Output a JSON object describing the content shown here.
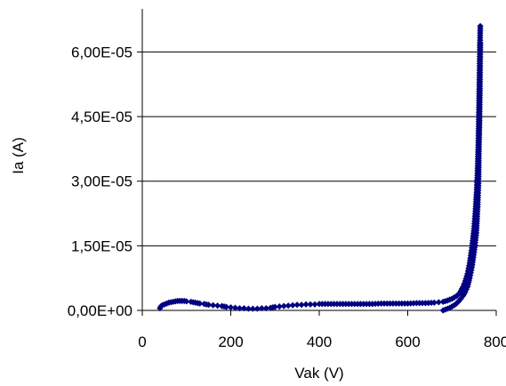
{
  "chart_data": {
    "type": "scatter",
    "title": "",
    "xlabel": "Vak (V)",
    "ylabel": "Ia (A)",
    "xlim": [
      0,
      800
    ],
    "ylim": [
      0,
      7e-05
    ],
    "x_ticks": [
      0,
      200,
      400,
      600,
      800
    ],
    "x_tick_labels": [
      "0",
      "200",
      "400",
      "600",
      "800"
    ],
    "y_ticks": [
      0,
      1.5e-05,
      3e-05,
      4.5e-05,
      6e-05
    ],
    "y_tick_labels": [
      "0,00E+00",
      "1,50E-05",
      "3,00E-05",
      "4,50E-05",
      "6,00E-05"
    ],
    "grid": "horizontal",
    "legend": "none",
    "marker_color": "#000080",
    "marker": "diamond",
    "series": [
      {
        "points": [
          [
            40,
            5e-07
          ],
          [
            42,
            9e-07
          ],
          [
            45,
            1.2e-06
          ],
          [
            50,
            1.4e-06
          ],
          [
            55,
            1.6e-06
          ],
          [
            60,
            1.8e-06
          ],
          [
            65,
            1.9e-06
          ],
          [
            70,
            2e-06
          ],
          [
            75,
            2.1e-06
          ],
          [
            80,
            2.2e-06
          ],
          [
            85,
            2.2e-06
          ],
          [
            90,
            2.2e-06
          ],
          [
            95,
            2.2e-06
          ],
          [
            100,
            2.1e-06
          ],
          [
            110,
            2e-06
          ],
          [
            120,
            1.8e-06
          ],
          [
            130,
            1.6e-06
          ],
          [
            140,
            1.5e-06
          ],
          [
            150,
            1.3e-06
          ],
          [
            160,
            1.2e-06
          ],
          [
            170,
            1.1e-06
          ],
          [
            180,
            1e-06
          ],
          [
            190,
            8e-07
          ],
          [
            200,
            7e-07
          ],
          [
            210,
            6e-07
          ],
          [
            220,
            5e-07
          ],
          [
            230,
            5e-07
          ],
          [
            240,
            4e-07
          ],
          [
            250,
            4e-07
          ],
          [
            260,
            4e-07
          ],
          [
            270,
            5e-07
          ],
          [
            280,
            5e-07
          ],
          [
            290,
            6e-07
          ],
          [
            300,
            8e-07
          ],
          [
            310,
            9e-07
          ],
          [
            320,
            1e-06
          ],
          [
            330,
            1.1e-06
          ],
          [
            340,
            1.2e-06
          ],
          [
            350,
            1.3e-06
          ],
          [
            360,
            1.3e-06
          ],
          [
            370,
            1.4e-06
          ],
          [
            380,
            1.4e-06
          ],
          [
            390,
            1.4e-06
          ],
          [
            400,
            1.5e-06
          ],
          [
            420,
            1.5e-06
          ],
          [
            440,
            1.5e-06
          ],
          [
            460,
            1.5e-06
          ],
          [
            480,
            1.5e-06
          ],
          [
            500,
            1.5e-06
          ],
          [
            520,
            1.5e-06
          ],
          [
            540,
            1.6e-06
          ],
          [
            560,
            1.6e-06
          ],
          [
            580,
            1.6e-06
          ],
          [
            600,
            1.6e-06
          ],
          [
            620,
            1.7e-06
          ],
          [
            640,
            1.7e-06
          ],
          [
            660,
            1.8e-06
          ],
          [
            670,
            1.9e-06
          ],
          [
            680,
            2e-06
          ],
          [
            690,
            2.3e-06
          ],
          [
            700,
            2.7e-06
          ],
          [
            710,
            3.3e-06
          ],
          [
            715,
            3.8e-06
          ],
          [
            720,
            4.5e-06
          ],
          [
            725,
            5.5e-06
          ],
          [
            730,
            6.8e-06
          ],
          [
            735,
            8.5e-06
          ],
          [
            740,
            1.1e-05
          ],
          [
            745,
            1.45e-05
          ],
          [
            750,
            1.9e-05
          ],
          [
            753,
            2.3e-05
          ],
          [
            756,
            2.8e-05
          ],
          [
            758,
            3.3e-05
          ],
          [
            760,
            4e-05
          ],
          [
            761,
            4.6e-05
          ],
          [
            762,
            5.3e-05
          ],
          [
            763,
            6e-05
          ],
          [
            764,
            6.6e-05
          ],
          [
            680,
            0
          ],
          [
            685,
            2e-07
          ],
          [
            690,
            4e-07
          ],
          [
            695,
            6e-07
          ],
          [
            700,
            9e-07
          ],
          [
            705,
            1.2e-06
          ],
          [
            710,
            1.6e-06
          ],
          [
            715,
            2.1e-06
          ],
          [
            720,
            2.7e-06
          ],
          [
            725,
            3.4e-06
          ],
          [
            730,
            4.3e-06
          ],
          [
            735,
            5.5e-06
          ],
          [
            740,
            7.5e-06
          ],
          [
            745,
            1e-05
          ],
          [
            750,
            1.35e-05
          ],
          [
            755,
            1.8e-05
          ],
          [
            758,
            2.4e-05
          ],
          [
            760,
            3e-05
          ],
          [
            761,
            3.8e-05
          ],
          [
            762,
            4.3e-05
          ],
          [
            763,
            5.1e-05
          ],
          [
            764,
            6.2e-05
          ]
        ]
      }
    ]
  }
}
